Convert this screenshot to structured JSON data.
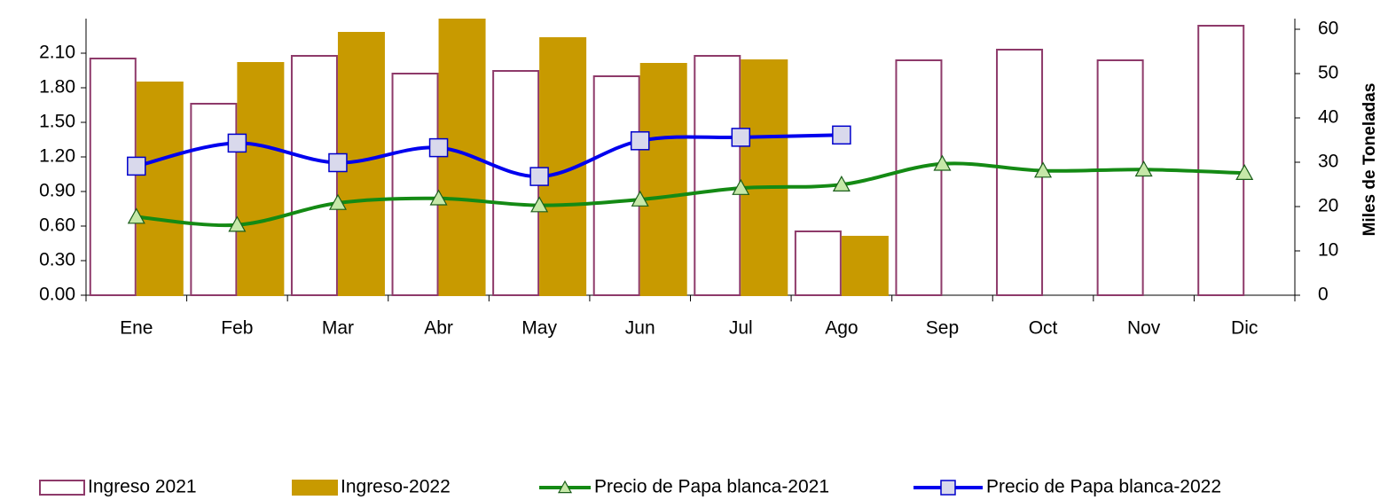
{
  "chart_data": {
    "type": "bar_line",
    "categories": [
      "Ene",
      "Feb",
      "Mar",
      "Abr",
      "May",
      "Jun",
      "Jul",
      "Ago",
      "Sep",
      "Oct",
      "Nov",
      "Dic"
    ],
    "series": [
      {
        "name": "Ingreso 2021",
        "type": "bar",
        "axis": "y2",
        "color": "#8e3a6a",
        "fill": "#ffffff",
        "values": [
          53.4,
          43.2,
          54,
          50,
          50.6,
          49.4,
          54,
          14.4,
          53,
          55.4,
          53,
          60.8
        ]
      },
      {
        "name": "Ingreso-2022",
        "type": "bar",
        "axis": "y2",
        "color": "#c89a00",
        "fill": "#c89a00",
        "values": [
          48,
          52.4,
          59.2,
          62.2,
          58,
          52.2,
          53,
          13.2,
          null,
          null,
          null,
          null
        ]
      },
      {
        "name": "Precio de Papa blanca-2021",
        "type": "line",
        "axis": "y",
        "color": "#148a14",
        "marker": "triangle",
        "marker_fill": "#c6e8a8",
        "values": [
          0.68,
          0.61,
          0.8,
          0.84,
          0.78,
          0.83,
          0.93,
          0.96,
          1.14,
          1.08,
          1.09,
          1.06
        ]
      },
      {
        "name": "Precio de Papa blanca-2022",
        "type": "line",
        "axis": "y",
        "color": "#0000ee",
        "marker": "square",
        "marker_fill": "#d9d9ec",
        "values": [
          1.12,
          1.32,
          1.15,
          1.28,
          1.03,
          1.34,
          1.37,
          1.39,
          null,
          null,
          null,
          null
        ]
      }
    ],
    "ylim": [
      0,
      2.4
    ],
    "yticks": [
      {
        "value": 0,
        "label": "0.00"
      },
      {
        "value": 0.3,
        "label": "0.30"
      },
      {
        "value": 0.6,
        "label": "0.60"
      },
      {
        "value": 0.9,
        "label": "0.90"
      },
      {
        "value": 1.2,
        "label": "1.20"
      },
      {
        "value": 1.5,
        "label": "1.50"
      },
      {
        "value": 1.8,
        "label": "1.80"
      },
      {
        "value": 2.1,
        "label": "2.10"
      }
    ],
    "y2lim": [
      0,
      62.4
    ],
    "y2ticks": [
      0,
      10,
      20,
      30,
      40,
      50,
      60
    ],
    "y2label": "Miles de Toneladas",
    "legend": "bottom"
  }
}
